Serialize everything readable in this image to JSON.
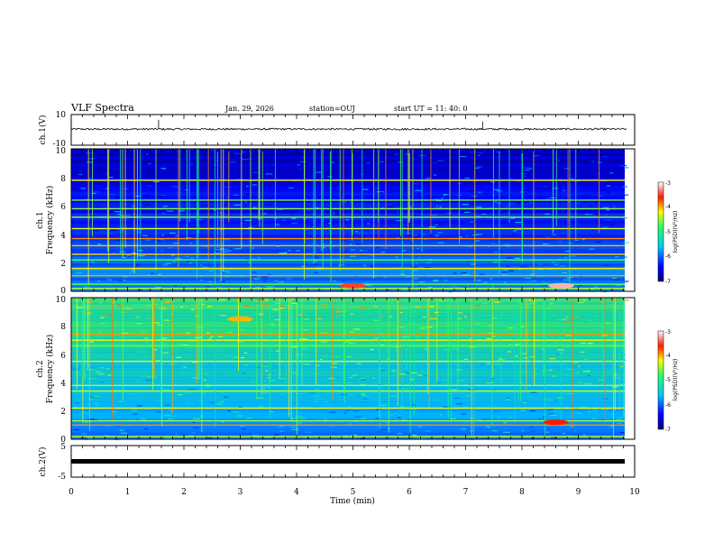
{
  "header": {
    "title": "VLF Spectra",
    "date": "Jan. 29, 2026",
    "station": "station=OUJ",
    "start": "start UT =  11: 40: 0"
  },
  "x_axis": {
    "label": "Time (min)",
    "ticks": [
      "0",
      "1",
      "2",
      "3",
      "4",
      "5",
      "6",
      "7",
      "8",
      "9",
      "10"
    ],
    "range": [
      0,
      10
    ]
  },
  "panels": {
    "ch1_wave": {
      "ylabel": "ch.1(V)",
      "yticks": [
        "10",
        "-10"
      ],
      "range": [
        -10,
        10
      ]
    },
    "ch1_spec": {
      "ylabel_line1": "ch.1",
      "ylabel_line2": "Frequency (kHz)",
      "yticks": [
        "0",
        "2",
        "4",
        "6",
        "8",
        "10"
      ],
      "range": [
        0,
        10
      ]
    },
    "ch2_spec": {
      "ylabel_line1": "ch.2",
      "ylabel_line2": "Frequency (kHz)",
      "yticks": [
        "0",
        "2",
        "4",
        "6",
        "8",
        "10"
      ],
      "range": [
        0,
        10
      ]
    },
    "ch2_wave": {
      "ylabel": "ch.2(V)",
      "yticks": [
        "5",
        "-5"
      ],
      "range": [
        -5,
        5
      ]
    }
  },
  "colorbar": {
    "label": "log(PSD)(V²/Hz)",
    "ticks": [
      "-3",
      "-4",
      "-5",
      "-6",
      "-7"
    ],
    "range": [
      -7,
      -3
    ]
  },
  "chart_data": [
    {
      "type": "line",
      "name": "ch.1 waveform",
      "ylabel": "ch.1(V)",
      "xlabel": "Time (min)",
      "xlim": [
        0,
        10
      ],
      "ylim": [
        -10,
        10
      ],
      "baseline": 0.5,
      "spikes": [
        {
          "x": 1.55,
          "y": 2.5
        },
        {
          "x": 7.3,
          "y": 1.5
        }
      ]
    },
    {
      "type": "heatmap",
      "name": "ch.1 spectrogram",
      "ylabel": "Frequency (kHz)",
      "xlim": [
        0,
        10
      ],
      "ylim": [
        0,
        10
      ],
      "colorscale": "log(PSD) -7 to -3",
      "lines_khz": [
        0.2,
        0.5,
        1.1,
        1.6,
        2.2,
        2.6,
        3.2,
        3.7,
        4.4,
        5.2,
        5.8,
        6.4,
        7.8
      ],
      "hot_spots": [
        {
          "x": 8.7,
          "f": 0.4,
          "level": -3.2
        },
        {
          "x": 5.0,
          "f": 0.4,
          "level": -3.5
        }
      ]
    },
    {
      "type": "heatmap",
      "name": "ch.2 spectrogram",
      "ylabel": "Frequency (kHz)",
      "xlim": [
        0,
        10
      ],
      "ylim": [
        0,
        10
      ],
      "colorscale": "log(PSD) -7 to -3",
      "lines_khz": [
        0.2,
        1.0,
        1.3,
        2.2,
        3.4,
        3.8,
        5.5,
        6.6,
        7.0,
        7.4
      ],
      "hot_spots": [
        {
          "x": 8.6,
          "f": 1.2,
          "level": -3.6
        },
        {
          "x": 3.0,
          "f": 8.5,
          "level": -4.0
        }
      ]
    },
    {
      "type": "line",
      "name": "ch.2 waveform",
      "ylabel": "ch.2(V)",
      "xlabel": "Time (min)",
      "xlim": [
        0,
        10
      ],
      "ylim": [
        -5,
        5
      ],
      "baseline": -0.5
    }
  ]
}
